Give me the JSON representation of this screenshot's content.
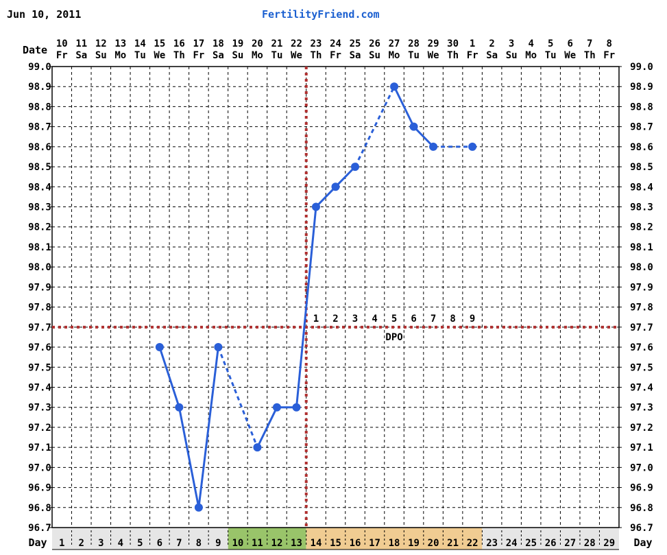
{
  "header": {
    "date": "Jun 10, 2011",
    "site": "FertilityFriend.com"
  },
  "chart_data": {
    "type": "line",
    "title": "",
    "row_labels": {
      "date": "Date",
      "day": "Day"
    },
    "dates": [
      "10",
      "11",
      "12",
      "13",
      "14",
      "15",
      "16",
      "17",
      "18",
      "19",
      "20",
      "21",
      "22",
      "23",
      "24",
      "25",
      "26",
      "27",
      "28",
      "29",
      "30",
      "1",
      "2",
      "3",
      "4",
      "5",
      "6",
      "7",
      "8"
    ],
    "weekdays": [
      "Fr",
      "Sa",
      "Su",
      "Mo",
      "Tu",
      "We",
      "Th",
      "Fr",
      "Sa",
      "Su",
      "Mo",
      "Tu",
      "We",
      "Th",
      "Fr",
      "Sa",
      "Su",
      "Mo",
      "Tu",
      "We",
      "Th",
      "Fr",
      "Sa",
      "Su",
      "Mo",
      "Tu",
      "We",
      "Th",
      "Fr"
    ],
    "cycle_days": [
      1,
      2,
      3,
      4,
      5,
      6,
      7,
      8,
      9,
      10,
      11,
      12,
      13,
      14,
      15,
      16,
      17,
      18,
      19,
      20,
      21,
      22,
      23,
      24,
      25,
      26,
      27,
      28,
      29
    ],
    "y_ticks": [
      "96.7",
      "96.8",
      "96.9",
      "97.0",
      "97.1",
      "97.2",
      "97.3",
      "97.4",
      "97.5",
      "97.6",
      "97.7",
      "97.8",
      "97.9",
      "98.0",
      "98.1",
      "98.2",
      "98.3",
      "98.4",
      "98.5",
      "98.6",
      "98.7",
      "98.8",
      "98.9",
      "99.0"
    ],
    "ylim": [
      96.7,
      99.0
    ],
    "grid": true,
    "temperatures": [
      {
        "day": 6,
        "temp": 97.6
      },
      {
        "day": 7,
        "temp": 97.3
      },
      {
        "day": 8,
        "temp": 96.8
      },
      {
        "day": 9,
        "temp": 97.6
      },
      {
        "day": 11,
        "temp": 97.1
      },
      {
        "day": 12,
        "temp": 97.3
      },
      {
        "day": 13,
        "temp": 97.3
      },
      {
        "day": 14,
        "temp": 98.3
      },
      {
        "day": 15,
        "temp": 98.4
      },
      {
        "day": 16,
        "temp": 98.5
      },
      {
        "day": 18,
        "temp": 98.9
      },
      {
        "day": 19,
        "temp": 98.7
      },
      {
        "day": 20,
        "temp": 98.6
      },
      {
        "day": 22,
        "temp": 98.6
      }
    ],
    "segments": [
      {
        "from": 6,
        "to": 7,
        "style": "solid"
      },
      {
        "from": 7,
        "to": 8,
        "style": "solid"
      },
      {
        "from": 8,
        "to": 9,
        "style": "solid"
      },
      {
        "from": 9,
        "to": 11,
        "style": "dashed"
      },
      {
        "from": 11,
        "to": 12,
        "style": "solid"
      },
      {
        "from": 12,
        "to": 13,
        "style": "solid"
      },
      {
        "from": 13,
        "to": 14,
        "style": "solid"
      },
      {
        "from": 14,
        "to": 15,
        "style": "solid"
      },
      {
        "from": 15,
        "to": 16,
        "style": "solid"
      },
      {
        "from": 16,
        "to": 18,
        "style": "dashed"
      },
      {
        "from": 18,
        "to": 19,
        "style": "solid"
      },
      {
        "from": 19,
        "to": 20,
        "style": "solid"
      },
      {
        "from": 20,
        "to": 22,
        "style": "dashed"
      }
    ],
    "coverline": 97.7,
    "ovulation_day": 13,
    "dpo": {
      "label": "DPO",
      "numbers": [
        "1",
        "2",
        "3",
        "4",
        "5",
        "6",
        "7",
        "8",
        "9"
      ],
      "start_day": 14
    },
    "day_bands": [
      {
        "from": 1,
        "to": 9,
        "color": "#e6e6e6"
      },
      {
        "from": 10,
        "to": 13,
        "color": "#99c46a"
      },
      {
        "from": 14,
        "to": 22,
        "color": "#f0cc92"
      },
      {
        "from": 23,
        "to": 29,
        "color": "#e6e6e6"
      }
    ],
    "colors": {
      "line": "#2a5fd8",
      "coverline": "#b03030",
      "grid": "#000000"
    }
  }
}
